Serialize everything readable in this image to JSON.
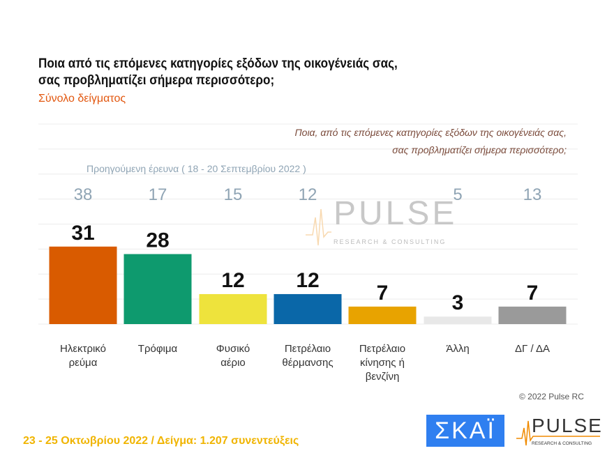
{
  "title_line1": "Ποια από τις επόμενες κατηγορίες εξόδων της οικογένειάς σας,",
  "title_line2": "σας προβληματίζει σήμερα περισσότερο;",
  "subtitle": "Σύνολο δείγματος",
  "question_line1": "Ποια, από τις επόμενες κατηγορίες εξόδων της οικογένειάς σας,",
  "question_line2": "σας προβληματίζει σήμερα περισσότερο;",
  "copyright": "© 2022 Pulse RC",
  "footer": "23 - 25  Οκτωβρίου  2022  /  Δείγμα:  1.207 συνεντεύξεις",
  "logos": {
    "skai": "ΣΚΑΪ",
    "pulse": "PULSE",
    "pulse_sub": "RESEARCH & CONSULTING"
  },
  "chart_data": {
    "type": "bar",
    "categories": [
      [
        "Ηλεκτρικό",
        "ρεύμα"
      ],
      [
        "Τρόφιμα"
      ],
      [
        "Φυσικό",
        "αέριο"
      ],
      [
        "Πετρέλαιο",
        "θέρμανσης"
      ],
      [
        "Πετρέλαιο",
        "κίνησης ή",
        "βενζίνη"
      ],
      [
        "Άλλη"
      ],
      [
        "ΔΓ / ΔΑ"
      ]
    ],
    "values": [
      31,
      28,
      12,
      12,
      7,
      3,
      7
    ],
    "colors": [
      "#d95b00",
      "#0e9a6e",
      "#eee33c",
      "#0a67a8",
      "#e8a300",
      "#e8e8e8",
      "#9a9a9a"
    ],
    "previous_label": "Προηγούμενη έρευνα  ( 18 - 20 Σεπτεμβρίου  2022 )",
    "previous_values": [
      38,
      17,
      15,
      12,
      5,
      13
    ],
    "previous_colors": "#8fa4b4",
    "ylim": [
      0,
      80
    ],
    "grid": true
  }
}
